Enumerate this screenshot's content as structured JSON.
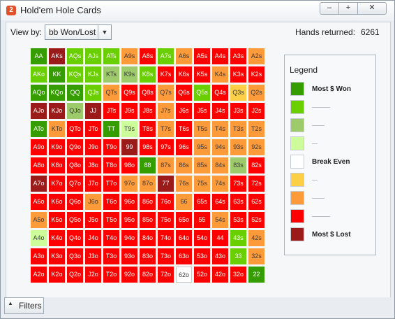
{
  "window": {
    "title": "Hold'em Hole Cards",
    "icon": "app-2-icon",
    "icon_text": "2",
    "minimize": "–",
    "maximize": "+",
    "close": "✕"
  },
  "toolbar": {
    "view_by_label": "View by:",
    "view_by_value": "bb Won/Lost",
    "hands_label": "Hands returned:",
    "hands_value": "6261"
  },
  "colors": {
    "K": "#9b1b1b",
    "R": "#ff0000",
    "O": "#fd9a3a",
    "Y": "#fdcf46",
    "W": "#ffffff",
    "P": "#cdfd9a",
    "M": "#9dca6a",
    "L": "#6acf00",
    "G": "#359d00"
  },
  "grid": {
    "hands": [
      [
        "AA",
        "AKs",
        "AQs",
        "AJs",
        "ATs",
        "A9s",
        "A8s",
        "A7s",
        "A6s",
        "A5s",
        "A4s",
        "A3s",
        "A2s"
      ],
      [
        "AKo",
        "KK",
        "KQs",
        "KJs",
        "KTs",
        "K9s",
        "K8s",
        "K7s",
        "K6s",
        "K5s",
        "K4s",
        "K3s",
        "K2s"
      ],
      [
        "AQo",
        "KQo",
        "QQ",
        "QJs",
        "QTs",
        "Q9s",
        "Q8s",
        "Q7s",
        "Q6s",
        "Q5s",
        "Q4s",
        "Q3s",
        "Q2s"
      ],
      [
        "AJo",
        "KJo",
        "QJo",
        "JJ",
        "JTs",
        "J9s",
        "J8s",
        "J7s",
        "J6s",
        "J5s",
        "J4s",
        "J3s",
        "J2s"
      ],
      [
        "ATo",
        "KTo",
        "QTo",
        "JTo",
        "TT",
        "T9s",
        "T8s",
        "T7s",
        "T6s",
        "T5s",
        "T4s",
        "T3s",
        "T2s"
      ],
      [
        "A9o",
        "K9o",
        "Q9o",
        "J9o",
        "T9o",
        "99",
        "98s",
        "97s",
        "96s",
        "95s",
        "94s",
        "93s",
        "92s"
      ],
      [
        "A8o",
        "K8o",
        "Q8o",
        "J8o",
        "T8o",
        "98o",
        "88",
        "87s",
        "86s",
        "85s",
        "84s",
        "83s",
        "82s"
      ],
      [
        "A7o",
        "K7o",
        "Q7o",
        "J7o",
        "T7o",
        "97o",
        "87o",
        "77",
        "76s",
        "75s",
        "74s",
        "73s",
        "72s"
      ],
      [
        "A6o",
        "K6o",
        "Q6o",
        "J6o",
        "T6o",
        "96o",
        "86o",
        "76o",
        "66",
        "65s",
        "64s",
        "63s",
        "62s"
      ],
      [
        "A5o",
        "K5o",
        "Q5o",
        "J5o",
        "T5o",
        "95o",
        "85o",
        "75o",
        "65o",
        "55",
        "54s",
        "53s",
        "52s"
      ],
      [
        "A4o",
        "K4o",
        "Q4o",
        "J4o",
        "T4o",
        "94o",
        "84o",
        "74o",
        "64o",
        "54o",
        "44",
        "43s",
        "42s"
      ],
      [
        "A3o",
        "K3o",
        "Q3o",
        "J3o",
        "T3o",
        "93o",
        "83o",
        "73o",
        "63o",
        "53o",
        "43o",
        "33",
        "32s"
      ],
      [
        "A2o",
        "K2o",
        "Q2o",
        "J2o",
        "T2o",
        "92o",
        "82o",
        "72o",
        "62o",
        "52o",
        "42o",
        "32o",
        "22"
      ]
    ],
    "colors": [
      "GKLLLORLORRRO",
      "LGLLMMLRRRORR",
      "GGGLORRORLRYO",
      "KKMKRRRORRRRR",
      "GORRGPROROOOO",
      "RRRRRKRRROOOO",
      "RRRRRRGOOOOMR",
      "KRRRROOKOOORR",
      "RRRORRRRORRRR",
      "ORRRRRRRRRORR",
      "PRRRRRRRRRRLO",
      "RRRRRRRRRRRLO",
      "RRRRRRRRWRRRG"
    ]
  },
  "legend": {
    "title": "Legend",
    "items": [
      {
        "color": "G",
        "label": "Most $ Won"
      },
      {
        "color": "L",
        "label": ""
      },
      {
        "color": "M",
        "label": ""
      },
      {
        "color": "P",
        "label": ""
      },
      {
        "color": "W",
        "label": "Break Even"
      },
      {
        "color": "Y",
        "label": ""
      },
      {
        "color": "O",
        "label": ""
      },
      {
        "color": "R",
        "label": ""
      },
      {
        "color": "K",
        "label": "Most $ Lost"
      }
    ]
  },
  "footer": {
    "filters_label": "Filters",
    "filters_icon": "chevron-up-icon"
  }
}
